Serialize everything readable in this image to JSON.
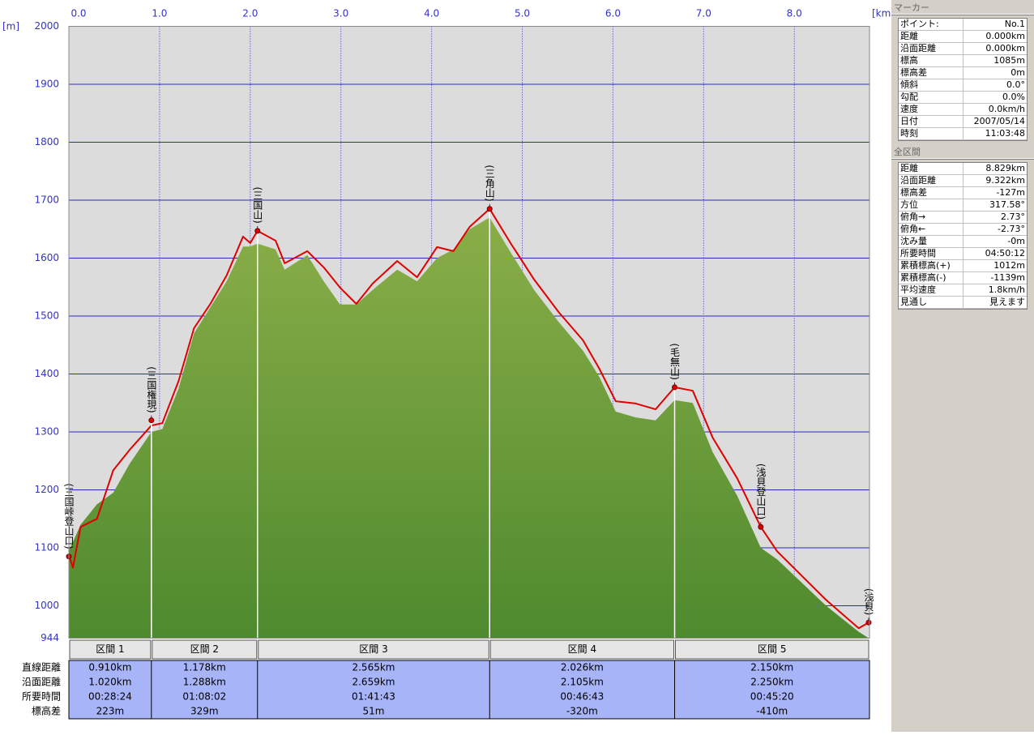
{
  "chart_data": {
    "type": "elevation-profile",
    "x_unit": "[km]",
    "y_unit": "[m]",
    "xlim": [
      0,
      8.829
    ],
    "ylim": [
      944,
      2000
    ],
    "xticks": [
      {
        "value": 0,
        "label": "0.0"
      },
      {
        "value": 1,
        "label": "1.0"
      },
      {
        "value": 2,
        "label": "2.0"
      },
      {
        "value": 3,
        "label": "3.0"
      },
      {
        "value": 4,
        "label": "4.0"
      },
      {
        "value": 5,
        "label": "5.0"
      },
      {
        "value": 6,
        "label": "6.0"
      },
      {
        "value": 7,
        "label": "7.0"
      },
      {
        "value": 8,
        "label": "8.0"
      }
    ],
    "yticks": [
      944,
      1000,
      1100,
      1200,
      1300,
      1400,
      1500,
      1600,
      1700,
      1800,
      1900,
      2000
    ],
    "grid": true,
    "x": [
      0,
      0.045,
      0.13,
      0.31,
      0.49,
      0.67,
      0.91,
      1.03,
      1.21,
      1.38,
      1.56,
      1.74,
      1.92,
      2.0,
      2.08,
      2.28,
      2.38,
      2.63,
      2.81,
      2.99,
      3.17,
      3.35,
      3.62,
      3.84,
      4.06,
      4.24,
      4.42,
      4.64,
      4.87,
      5.13,
      5.4,
      5.67,
      5.85,
      6.03,
      6.25,
      6.47,
      6.68,
      6.88,
      7.1,
      7.37,
      7.63,
      7.81,
      8.08,
      8.35,
      8.71,
      8.82
    ],
    "series": [
      {
        "color": "#7fa83f",
        "fill": true,
        "values": [
          1095,
          1110,
          1140,
          1175,
          1195,
          1245,
          1300,
          1305,
          1375,
          1470,
          1515,
          1560,
          1620,
          1620,
          1625,
          1615,
          1580,
          1605,
          1560,
          1520,
          1520,
          1545,
          1580,
          1560,
          1600,
          1615,
          1650,
          1670,
          1610,
          1545,
          1490,
          1440,
          1395,
          1335,
          1325,
          1320,
          1355,
          1350,
          1265,
          1190,
          1100,
          1080,
          1040,
          1000,
          955,
          944
        ]
      },
      {
        "color": "#e00000",
        "fill": false,
        "values": [
          1087,
          1066,
          1136,
          1150,
          1234,
          1269,
          1311,
          1315,
          1388,
          1479,
          1521,
          1570,
          1637,
          1626,
          1647,
          1630,
          1591,
          1612,
          1584,
          1549,
          1521,
          1556,
          1595,
          1567,
          1619,
          1612,
          1654,
          1685,
          1626,
          1563,
          1507,
          1458,
          1409,
          1353,
          1349,
          1339,
          1377,
          1371,
          1290,
          1220,
          1136,
          1094,
          1052,
          1010,
          961,
          971
        ]
      }
    ],
    "markers": [
      {
        "label": "(三国峠登山口)",
        "x": 0,
        "y": 1085
      },
      {
        "label": "(三国権現)",
        "x": 0.91,
        "y": 1320
      },
      {
        "label": "(三国山)",
        "x": 2.08,
        "y": 1647
      },
      {
        "label": "(三角山)",
        "x": 4.64,
        "y": 1685
      },
      {
        "label": "(毛無山)",
        "x": 6.68,
        "y": 1377
      },
      {
        "label": "(浅貝登山口)",
        "x": 7.63,
        "y": 1136
      },
      {
        "label": "(浅貝)",
        "x": 8.82,
        "y": 971
      }
    ]
  },
  "section_table": {
    "row_labels": [
      "直線距離",
      "沿面距離",
      "所要時間",
      "標高差"
    ],
    "columns": [
      {
        "header": "区間 1",
        "cells": [
          "0.910km",
          "1.020km",
          "00:28:24",
          "223m"
        ]
      },
      {
        "header": "区間 2",
        "cells": [
          "1.178km",
          "1.288km",
          "01:08:02",
          "329m"
        ]
      },
      {
        "header": "区間 3",
        "cells": [
          "2.565km",
          "2.659km",
          "01:41:43",
          "51m"
        ]
      },
      {
        "header": "区間 4",
        "cells": [
          "2.026km",
          "2.105km",
          "00:46:43",
          "-320m"
        ]
      },
      {
        "header": "区間 5",
        "cells": [
          "2.150km",
          "2.250km",
          "00:45:20",
          "-410m"
        ]
      }
    ]
  },
  "marker_panel": {
    "title": "マーカー",
    "rows": [
      [
        "ポイント:",
        "No.1"
      ],
      [
        "距離",
        "0.000km"
      ],
      [
        "沿面距離",
        "0.000km"
      ],
      [
        "標高",
        "1085m"
      ],
      [
        "標高差",
        "0m"
      ],
      [
        "傾斜",
        "0.0°"
      ],
      [
        "勾配",
        "0.0%"
      ],
      [
        "速度",
        "0.0km/h"
      ],
      [
        "日付",
        "2007/05/14"
      ],
      [
        "時刻",
        "11:03:48"
      ]
    ]
  },
  "total_panel": {
    "title": "全区間",
    "rows": [
      [
        "距離",
        "8.829km"
      ],
      [
        "沿面距離",
        "9.322km"
      ],
      [
        "標高差",
        "-127m"
      ],
      [
        "方位",
        "317.58°"
      ],
      [
        "俯角→",
        "2.73°"
      ],
      [
        "俯角←",
        "-2.73°"
      ],
      [
        "沈み量",
        "-0m"
      ],
      [
        "所要時間",
        "04:50:12"
      ],
      [
        "累積標高(+)",
        "1012m"
      ],
      [
        "累積標高(-)",
        "-1139m"
      ],
      [
        "平均速度",
        "1.8km/h"
      ],
      [
        "見通し",
        "見えます"
      ]
    ]
  }
}
